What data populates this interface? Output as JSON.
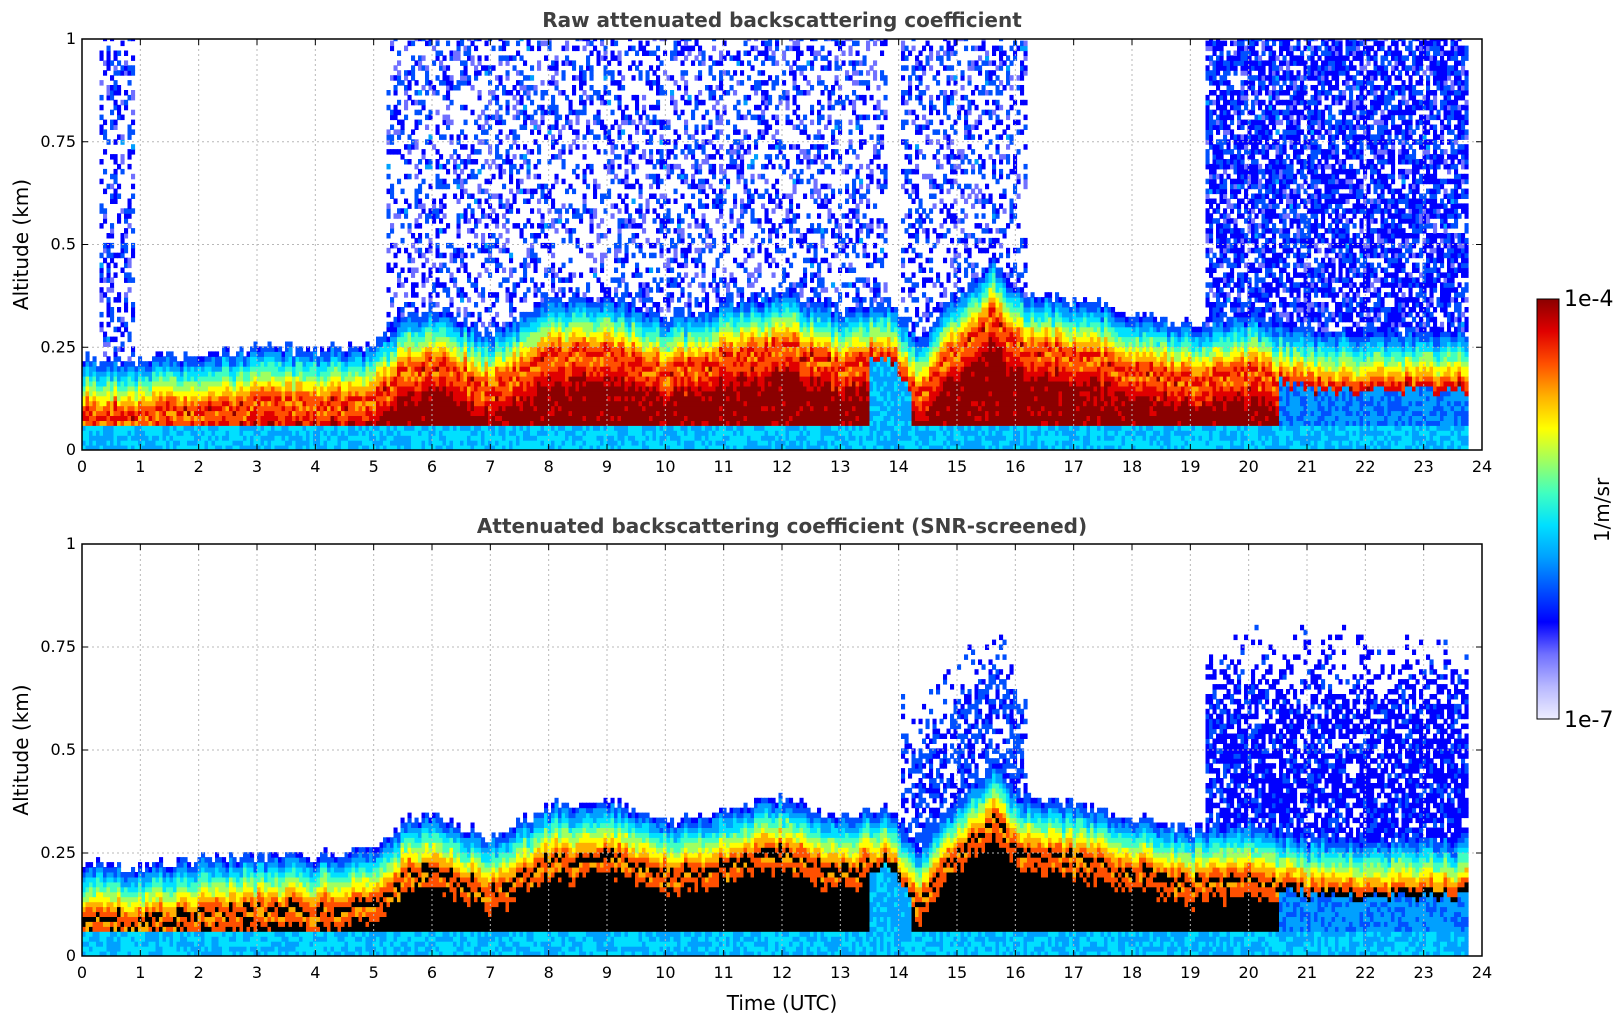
{
  "chart_data": [
    {
      "type": "heatmap",
      "title": "Raw attenuated backscattering coefficient",
      "xlabel": "",
      "ylabel": "Altitude (km)",
      "xlim": [
        0,
        24
      ],
      "ylim": [
        0,
        1
      ],
      "xticks": [
        "0",
        "1",
        "2",
        "3",
        "4",
        "5",
        "6",
        "7",
        "8",
        "9",
        "10",
        "11",
        "12",
        "13",
        "14",
        "15",
        "16",
        "17",
        "18",
        "19",
        "20",
        "21",
        "22",
        "23",
        "24"
      ],
      "yticks": [
        {
          "v": 0,
          "label": "0"
        },
        {
          "v": 0.25,
          "label": "0.25"
        },
        {
          "v": 0.5,
          "label": "0.5"
        },
        {
          "v": 0.75,
          "label": "0.75"
        },
        {
          "v": 1,
          "label": "1"
        }
      ],
      "grid": true,
      "data_end_hour": 23.7,
      "boundary_layer_top_km": [
        [
          0,
          0.16
        ],
        [
          1,
          0.15
        ],
        [
          2,
          0.17
        ],
        [
          3,
          0.18
        ],
        [
          4,
          0.18
        ],
        [
          5,
          0.19
        ],
        [
          5.5,
          0.26
        ],
        [
          6,
          0.28
        ],
        [
          7,
          0.22
        ],
        [
          8,
          0.3
        ],
        [
          9,
          0.31
        ],
        [
          10,
          0.26
        ],
        [
          11,
          0.29
        ],
        [
          12,
          0.32
        ],
        [
          13,
          0.27
        ],
        [
          13.8,
          0.3
        ],
        [
          14.3,
          0.2
        ],
        [
          15,
          0.32
        ],
        [
          15.6,
          0.4
        ],
        [
          16,
          0.32
        ],
        [
          17,
          0.3
        ],
        [
          18,
          0.27
        ],
        [
          19,
          0.24
        ],
        [
          20,
          0.26
        ],
        [
          21,
          0.22
        ]
      ],
      "noise_regions_hours": [
        [
          0.3,
          0.9
        ],
        [
          5.2,
          13.8
        ],
        [
          14,
          16.2
        ],
        [
          19.2,
          23.7
        ]
      ]
    },
    {
      "type": "heatmap",
      "title": "Attenuated backscattering coefficient (SNR-screened)",
      "xlabel": "Time (UTC)",
      "ylabel": "Altitude (km)",
      "xlim": [
        0,
        24
      ],
      "ylim": [
        0,
        1
      ],
      "xticks": [
        "0",
        "1",
        "2",
        "3",
        "4",
        "5",
        "6",
        "7",
        "8",
        "9",
        "10",
        "11",
        "12",
        "13",
        "14",
        "15",
        "16",
        "17",
        "18",
        "19",
        "20",
        "21",
        "22",
        "23",
        "24"
      ],
      "yticks": [
        {
          "v": 0,
          "label": "0"
        },
        {
          "v": 0.25,
          "label": "0.25"
        },
        {
          "v": 0.5,
          "label": "0.5"
        },
        {
          "v": 0.75,
          "label": "0.75"
        },
        {
          "v": 1,
          "label": "1"
        }
      ],
      "grid": true,
      "data_end_hour": 23.7,
      "saturated_color": "#000000"
    }
  ],
  "colorbar": {
    "label": "1/m/sr",
    "max_label": "1e-4",
    "min_label": "1e-7",
    "colors": [
      "#eeeeff",
      "#b8b8ff",
      "#7070ff",
      "#0000ff",
      "#0050ff",
      "#00a0ff",
      "#00e0ff",
      "#40ffc0",
      "#a0ff60",
      "#ffff00",
      "#ffb000",
      "#ff5000",
      "#e00000",
      "#8b0000"
    ]
  }
}
